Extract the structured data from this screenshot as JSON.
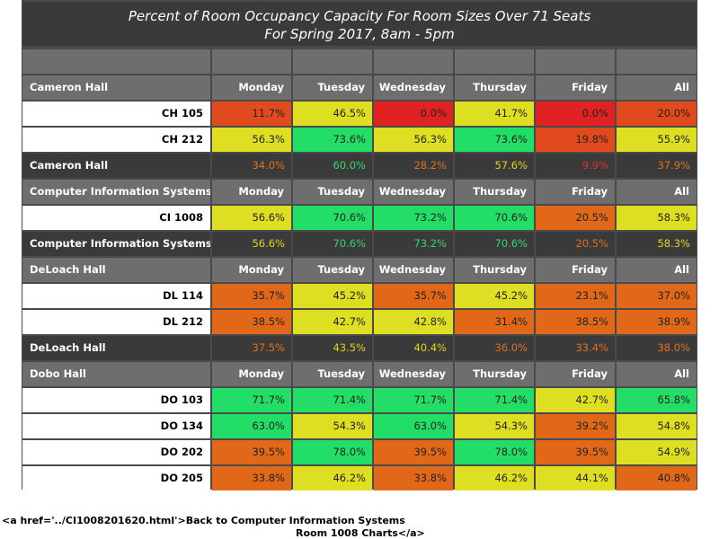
{
  "title_line1": "Percent of Room Occupancy Capacity For Room Sizes Over 71 Seats",
  "title_line2": "For Spring 2017, 8am - 5pm",
  "days": [
    "Monday",
    "Tuesday",
    "Wednesday",
    "Thursday",
    "Friday",
    "All"
  ],
  "colors": {
    "red": "#e02222",
    "red_orange": "#e04a1c",
    "orange": "#e06818",
    "yellow": "#dede22",
    "green": "#22dd66",
    "summary_text_red": "#e03030",
    "summary_text_orange": "#e07020",
    "summary_text_yellow": "#d8d820",
    "summary_text_green": "#30d868"
  },
  "chart_data": {
    "type": "table",
    "title": "Percent of Room Occupancy Capacity For Room Sizes Over 71 Seats",
    "subtitle": "For Spring 2017, 8am - 5pm",
    "columns": [
      "Monday",
      "Tuesday",
      "Wednesday",
      "Thursday",
      "Friday",
      "All"
    ],
    "groups": [
      {
        "name": "Cameron Hall",
        "rooms": [
          {
            "name": "CH 105",
            "values": [
              "11.7%",
              "46.5%",
              "0.0%",
              "41.7%",
              "0.0%",
              "20.0%"
            ],
            "colors": [
              "red_orange",
              "yellow",
              "red",
              "yellow",
              "red",
              "red_orange"
            ]
          },
          {
            "name": "CH 212",
            "values": [
              "56.3%",
              "73.6%",
              "56.3%",
              "73.6%",
              "19.8%",
              "55.9%"
            ],
            "colors": [
              "yellow",
              "green",
              "yellow",
              "green",
              "red_orange",
              "yellow"
            ]
          }
        ],
        "summary": {
          "name": "Cameron Hall",
          "values": [
            "34.0%",
            "60.0%",
            "28.2%",
            "57.6%",
            "9.9%",
            "37.9%"
          ],
          "colors": [
            "summary_text_orange",
            "summary_text_green",
            "summary_text_orange",
            "summary_text_yellow",
            "summary_text_red",
            "summary_text_orange"
          ]
        }
      },
      {
        "name": "Computer Information Systems",
        "rooms": [
          {
            "name": "CI 1008",
            "values": [
              "56.6%",
              "70.6%",
              "73.2%",
              "70.6%",
              "20.5%",
              "58.3%"
            ],
            "colors": [
              "yellow",
              "green",
              "green",
              "green",
              "orange",
              "yellow"
            ]
          }
        ],
        "summary": {
          "name": "Computer Information Systems",
          "values": [
            "56.6%",
            "70.6%",
            "73.2%",
            "70.6%",
            "20.5%",
            "58.3%"
          ],
          "colors": [
            "summary_text_yellow",
            "summary_text_green",
            "summary_text_green",
            "summary_text_green",
            "summary_text_orange",
            "summary_text_yellow"
          ]
        }
      },
      {
        "name": "DeLoach Hall",
        "rooms": [
          {
            "name": "DL 114",
            "values": [
              "35.7%",
              "45.2%",
              "35.7%",
              "45.2%",
              "23.1%",
              "37.0%"
            ],
            "colors": [
              "orange",
              "yellow",
              "orange",
              "yellow",
              "orange",
              "orange"
            ]
          },
          {
            "name": "DL 212",
            "values": [
              "38.5%",
              "42.7%",
              "42.8%",
              "31.4%",
              "38.5%",
              "38.9%"
            ],
            "colors": [
              "orange",
              "yellow",
              "yellow",
              "orange",
              "orange",
              "orange"
            ]
          }
        ],
        "summary": {
          "name": "DeLoach Hall",
          "values": [
            "37.5%",
            "43.5%",
            "40.4%",
            "36.0%",
            "33.4%",
            "38.0%"
          ],
          "colors": [
            "summary_text_orange",
            "summary_text_yellow",
            "summary_text_yellow",
            "summary_text_orange",
            "summary_text_orange",
            "summary_text_orange"
          ]
        }
      },
      {
        "name": "Dobo Hall",
        "rooms": [
          {
            "name": "DO 103",
            "values": [
              "71.7%",
              "71.4%",
              "71.7%",
              "71.4%",
              "42.7%",
              "65.8%"
            ],
            "colors": [
              "green",
              "green",
              "green",
              "green",
              "yellow",
              "green"
            ]
          },
          {
            "name": "DO 134",
            "values": [
              "63.0%",
              "54.3%",
              "63.0%",
              "54.3%",
              "39.2%",
              "54.8%"
            ],
            "colors": [
              "green",
              "yellow",
              "green",
              "yellow",
              "orange",
              "yellow"
            ]
          },
          {
            "name": "DO 202",
            "values": [
              "39.5%",
              "78.0%",
              "39.5%",
              "78.0%",
              "39.5%",
              "54.9%"
            ],
            "colors": [
              "orange",
              "green",
              "orange",
              "green",
              "orange",
              "yellow"
            ]
          },
          {
            "name": "DO 205",
            "values": [
              "33.8%",
              "46.2%",
              "33.8%",
              "46.2%",
              "44.1%",
              "40.8%"
            ],
            "colors": [
              "orange",
              "yellow",
              "orange",
              "yellow",
              "yellow",
              "orange"
            ]
          }
        ]
      }
    ]
  },
  "footer": {
    "line1": "<a href='../CI1008201620.html'>Back to Computer Information Systems",
    "line2": "Room 1008 Charts</a>"
  }
}
